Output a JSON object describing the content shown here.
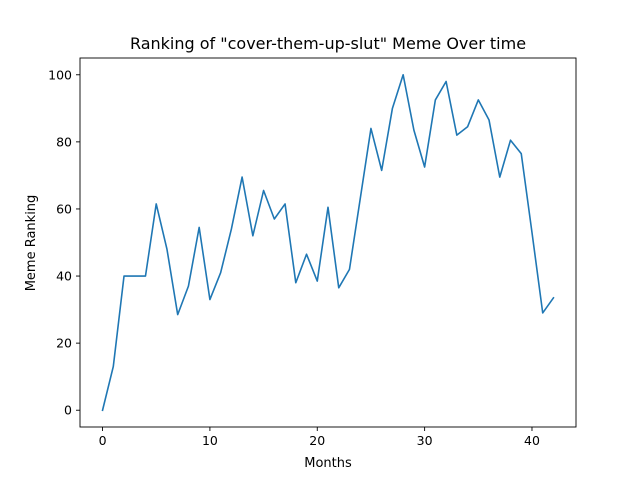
{
  "chart_data": {
    "type": "line",
    "title": "Ranking of \"cover-them-up-slut\" Meme Over time",
    "xlabel": "Months",
    "ylabel": "Meme Ranking",
    "xlim": [
      -2.1,
      44.1
    ],
    "ylim": [
      -5,
      105
    ],
    "xticks": [
      0,
      10,
      20,
      30,
      40
    ],
    "yticks": [
      0,
      20,
      40,
      60,
      80,
      100
    ],
    "grid": false,
    "series": [
      {
        "color": "#1f77b4",
        "x": [
          0,
          1,
          2,
          3,
          4,
          5,
          6,
          7,
          8,
          9,
          10,
          11,
          12,
          13,
          14,
          15,
          16,
          17,
          18,
          19,
          20,
          21,
          22,
          23,
          24,
          25,
          26,
          27,
          28,
          29,
          30,
          31,
          32,
          33,
          34,
          35,
          36,
          37,
          38,
          39,
          40,
          41,
          42
        ],
        "y": [
          0,
          13,
          40,
          40,
          40,
          61.5,
          48,
          28.5,
          37,
          54.5,
          33,
          41,
          54,
          69.5,
          52,
          65.5,
          57,
          61.5,
          38,
          46.5,
          38.5,
          60.5,
          36.5,
          42,
          63,
          84,
          71.5,
          90,
          100,
          83.5,
          72.5,
          92.5,
          98,
          82,
          84.5,
          92.5,
          86.5,
          69.5,
          80.5,
          76.5,
          53,
          29,
          33.5
        ]
      }
    ]
  }
}
